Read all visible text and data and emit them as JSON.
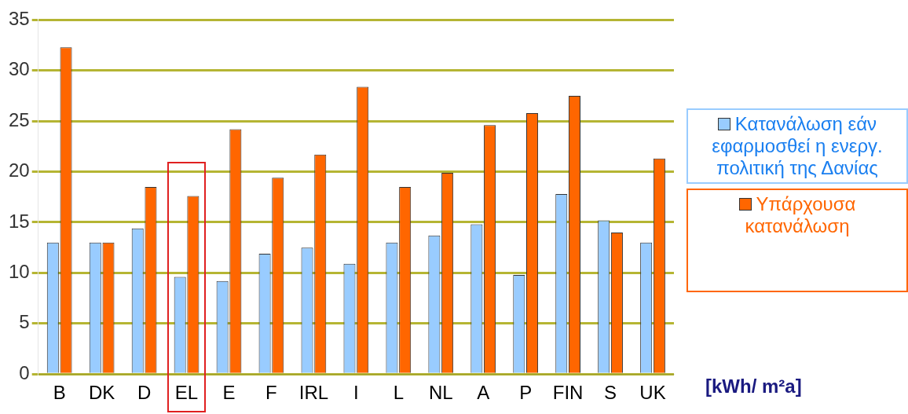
{
  "chart_data": {
    "type": "bar",
    "categories": [
      "B",
      "DK",
      "D",
      "EL",
      "E",
      "F",
      "IRL",
      "I",
      "L",
      "NL",
      "A",
      "P",
      "FIN",
      "S",
      "UK"
    ],
    "series": [
      {
        "name": "Κατανάλωση εάν εφαρμοσθεί η ενεργ. πολιτική της Δανίας",
        "color": "#99ccff",
        "values": [
          13,
          13,
          14.4,
          9.6,
          9.2,
          11.9,
          12.5,
          10.9,
          13,
          13.7,
          14.8,
          9.8,
          17.8,
          15.2,
          13
        ]
      },
      {
        "name": "Υπάρχουσα κατανάλωση",
        "color": "#ff6600",
        "values": [
          32.3,
          13,
          18.5,
          17.6,
          24.2,
          19.4,
          21.7,
          28.4,
          18.5,
          19.9,
          24.6,
          25.8,
          27.5,
          14,
          21.3
        ]
      }
    ],
    "ylim": [
      0,
      35
    ],
    "yticks": [
      0,
      5,
      10,
      15,
      20,
      25,
      30,
      35
    ],
    "grid": "y",
    "legend": "right",
    "annotations": [
      "[kWh/ m²a]"
    ]
  }
}
